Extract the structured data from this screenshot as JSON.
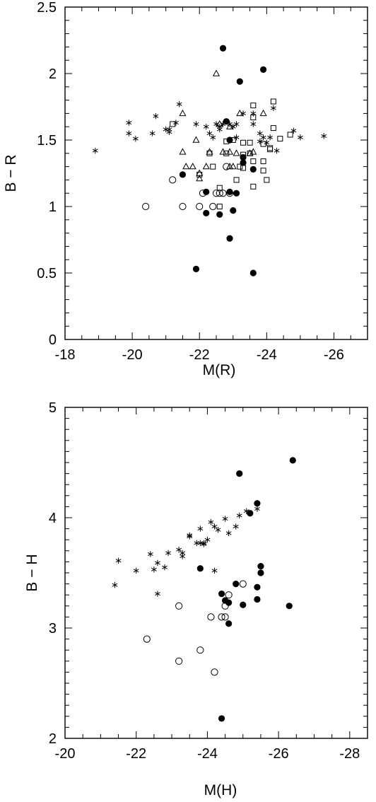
{
  "chart_data": [
    {
      "type": "scatter",
      "xlabel": "M(R)",
      "ylabel": "B − R",
      "xlim": [
        -18,
        -27
      ],
      "ylim": [
        0,
        2.5
      ],
      "x_ticks": [
        "-18",
        "-20",
        "-22",
        "-24",
        "-26"
      ],
      "y_ticks": [
        "0",
        "0.5",
        "1",
        "1.5",
        "2",
        "2.5"
      ],
      "grid": false,
      "series": [
        {
          "marker": "asterisk",
          "points": [
            [
              -18.9,
              1.42
            ],
            [
              -19.9,
              1.63
            ],
            [
              -19.9,
              1.55
            ],
            [
              -20.1,
              1.51
            ],
            [
              -20.6,
              1.55
            ],
            [
              -20.7,
              1.68
            ],
            [
              -21.0,
              1.58
            ],
            [
              -21.1,
              1.58
            ],
            [
              -21.1,
              1.56
            ],
            [
              -21.3,
              1.63
            ],
            [
              -21.4,
              1.77
            ],
            [
              -21.9,
              1.62
            ],
            [
              -22.2,
              1.6
            ],
            [
              -22.3,
              1.55
            ],
            [
              -22.4,
              1.52
            ],
            [
              -22.5,
              1.62
            ],
            [
              -22.6,
              1.58
            ],
            [
              -22.6,
              1.6
            ],
            [
              -22.7,
              1.62
            ],
            [
              -22.8,
              1.64
            ],
            [
              -22.9,
              1.62
            ],
            [
              -23.0,
              1.6
            ],
            [
              -23.1,
              1.52
            ],
            [
              -23.1,
              1.62
            ],
            [
              -23.3,
              1.7
            ],
            [
              -23.6,
              1.62
            ],
            [
              -23.6,
              1.7
            ],
            [
              -23.8,
              1.55
            ],
            [
              -23.8,
              1.49
            ],
            [
              -23.9,
              1.52
            ],
            [
              -24.0,
              1.48
            ],
            [
              -24.1,
              1.52
            ],
            [
              -24.2,
              1.74
            ],
            [
              -24.3,
              1.42
            ],
            [
              -24.8,
              1.57
            ],
            [
              -25.0,
              1.52
            ],
            [
              -25.7,
              1.53
            ]
          ]
        },
        {
          "marker": "triangle-open",
          "points": [
            [
              -21.5,
              1.41
            ],
            [
              -21.6,
              1.3
            ],
            [
              -21.8,
              1.3
            ],
            [
              -21.9,
              1.5
            ],
            [
              -22.0,
              1.21
            ],
            [
              -22.0,
              1.25
            ],
            [
              -22.2,
              1.3
            ],
            [
              -22.3,
              1.41
            ],
            [
              -22.5,
              2.0
            ],
            [
              -22.7,
              1.41
            ],
            [
              -22.9,
              1.41
            ],
            [
              -22.9,
              1.3
            ],
            [
              -23.0,
              1.3
            ],
            [
              -23.1,
              1.4
            ],
            [
              -23.2,
              1.7
            ],
            [
              -23.5,
              1.4
            ],
            [
              -23.6,
              1.41
            ],
            [
              -23.9,
              1.7
            ],
            [
              -21.5,
              1.7
            ],
            [
              -22.6,
              1.62
            ],
            [
              -22.9,
              1.6
            ]
          ]
        },
        {
          "marker": "square-open",
          "points": [
            [
              -21.2,
              1.62
            ],
            [
              -22.0,
              1.24
            ],
            [
              -22.3,
              1.4
            ],
            [
              -22.4,
              1.3
            ],
            [
              -22.6,
              1.14
            ],
            [
              -22.6,
              1.0
            ],
            [
              -22.8,
              1.49
            ],
            [
              -22.8,
              1.4
            ],
            [
              -23.0,
              1.5
            ],
            [
              -23.1,
              1.2
            ],
            [
              -23.2,
              1.3
            ],
            [
              -23.3,
              1.48
            ],
            [
              -23.3,
              1.39
            ],
            [
              -23.5,
              1.4
            ],
            [
              -23.5,
              1.48
            ],
            [
              -23.6,
              1.15
            ],
            [
              -23.6,
              1.34
            ],
            [
              -23.6,
              1.67
            ],
            [
              -23.6,
              1.76
            ],
            [
              -23.9,
              1.27
            ],
            [
              -23.9,
              1.34
            ],
            [
              -23.9,
              1.47
            ],
            [
              -24.0,
              1.2
            ],
            [
              -24.1,
              1.43
            ],
            [
              -24.1,
              1.44
            ],
            [
              -24.2,
              1.79
            ],
            [
              -24.2,
              1.59
            ],
            [
              -24.4,
              1.51
            ],
            [
              -24.7,
              1.54
            ],
            [
              -23.3,
              1.29
            ]
          ]
        },
        {
          "marker": "circle-open",
          "points": [
            [
              -20.4,
              1.0
            ],
            [
              -21.2,
              1.2
            ],
            [
              -21.5,
              1.0
            ],
            [
              -22.0,
              1.0
            ],
            [
              -22.1,
              1.1
            ],
            [
              -22.4,
              1.0
            ],
            [
              -22.5,
              1.1
            ],
            [
              -22.6,
              1.1
            ],
            [
              -22.7,
              1.1
            ],
            [
              -22.8,
              1.3
            ],
            [
              -22.9,
              1.1
            ]
          ]
        },
        {
          "marker": "circle-filled",
          "points": [
            [
              -22.7,
              2.19
            ],
            [
              -23.9,
              2.03
            ],
            [
              -23.2,
              1.94
            ],
            [
              -22.8,
              1.64
            ],
            [
              -23.3,
              1.37
            ],
            [
              -23.6,
              1.28
            ],
            [
              -23.3,
              1.33
            ],
            [
              -22.9,
              1.5
            ],
            [
              -21.5,
              1.24
            ],
            [
              -22.2,
              1.11
            ],
            [
              -22.9,
              1.11
            ],
            [
              -23.1,
              1.1
            ],
            [
              -22.2,
              0.95
            ],
            [
              -22.6,
              0.94
            ],
            [
              -23.0,
              0.97
            ],
            [
              -22.9,
              0.76
            ],
            [
              -21.9,
              0.53
            ],
            [
              -23.6,
              0.5
            ]
          ]
        }
      ]
    },
    {
      "type": "scatter",
      "xlabel": "M(H)",
      "ylabel": "B − H",
      "xlim": [
        -20,
        -28.5
      ],
      "ylim": [
        2,
        5
      ],
      "x_ticks": [
        "-20",
        "-22",
        "-24",
        "-26",
        "-28"
      ],
      "y_ticks": [
        "2",
        "3",
        "4",
        "5"
      ],
      "grid": false,
      "series": [
        {
          "marker": "asterisk",
          "points": [
            [
              -21.4,
              3.39
            ],
            [
              -21.5,
              3.61
            ],
            [
              -22.0,
              3.52
            ],
            [
              -22.4,
              3.67
            ],
            [
              -22.5,
              3.53
            ],
            [
              -22.6,
              3.59
            ],
            [
              -22.6,
              3.31
            ],
            [
              -22.8,
              3.55
            ],
            [
              -22.9,
              3.68
            ],
            [
              -23.2,
              3.71
            ],
            [
              -23.3,
              3.65
            ],
            [
              -23.3,
              3.68
            ],
            [
              -23.5,
              3.83
            ],
            [
              -23.5,
              3.84
            ],
            [
              -23.7,
              3.77
            ],
            [
              -23.8,
              3.9
            ],
            [
              -23.8,
              3.77
            ],
            [
              -23.9,
              3.77
            ],
            [
              -23.9,
              3.76
            ],
            [
              -24.0,
              3.8
            ],
            [
              -24.1,
              3.96
            ],
            [
              -24.2,
              3.92
            ],
            [
              -24.2,
              3.52
            ],
            [
              -24.3,
              3.89
            ],
            [
              -24.5,
              3.99
            ],
            [
              -24.6,
              3.86
            ],
            [
              -24.8,
              3.92
            ],
            [
              -24.9,
              4.02
            ],
            [
              -25.1,
              4.06
            ],
            [
              -25.4,
              4.08
            ]
          ]
        },
        {
          "marker": "circle-open",
          "points": [
            [
              -22.3,
              2.9
            ],
            [
              -23.2,
              3.2
            ],
            [
              -23.2,
              2.7
            ],
            [
              -23.8,
              2.8
            ],
            [
              -24.1,
              3.1
            ],
            [
              -24.2,
              2.6
            ],
            [
              -24.4,
              3.1
            ],
            [
              -24.5,
              3.1
            ],
            [
              -24.5,
              3.2
            ],
            [
              -24.6,
              3.3
            ],
            [
              -25.0,
              3.4
            ]
          ]
        },
        {
          "marker": "circle-filled",
          "points": [
            [
              -26.4,
              4.52
            ],
            [
              -24.9,
              4.4
            ],
            [
              -25.4,
              4.13
            ],
            [
              -25.2,
              4.04
            ],
            [
              -23.8,
              3.54
            ],
            [
              -25.5,
              3.56
            ],
            [
              -25.5,
              3.5
            ],
            [
              -24.8,
              3.4
            ],
            [
              -25.4,
              3.37
            ],
            [
              -24.4,
              3.31
            ],
            [
              -24.5,
              3.25
            ],
            [
              -24.6,
              3.23
            ],
            [
              -25.4,
              3.26
            ],
            [
              -25.0,
              3.21
            ],
            [
              -26.3,
              3.2
            ],
            [
              -24.6,
              3.04
            ],
            [
              -24.4,
              2.18
            ]
          ]
        }
      ]
    }
  ]
}
